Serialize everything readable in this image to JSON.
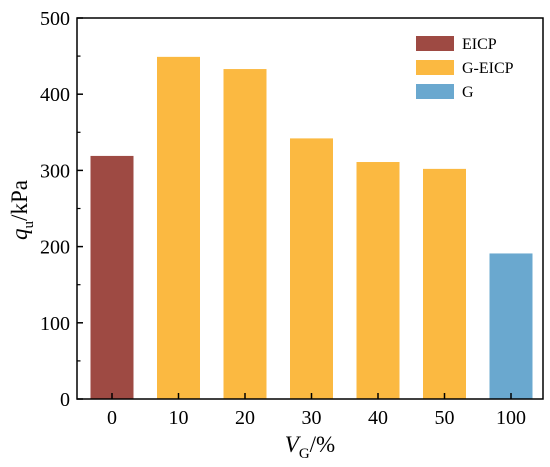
{
  "chart_data": {
    "type": "bar",
    "categories": [
      "0",
      "10",
      "20",
      "30",
      "40",
      "50",
      "100"
    ],
    "values": [
      319,
      449,
      433,
      342,
      311,
      302,
      191
    ],
    "groups": [
      "EICP",
      "G-EICP",
      "G-EICP",
      "G-EICP",
      "G-EICP",
      "G-EICP",
      "G"
    ],
    "legend": [
      {
        "name": "EICP",
        "color": "#9e4a43"
      },
      {
        "name": "G-EICP",
        "color": "#fbb941"
      },
      {
        "name": "G",
        "color": "#6aa8cf"
      }
    ],
    "xlabel": {
      "main": "V",
      "sub": "G",
      "tail": "/%"
    },
    "ylabel": {
      "main": "q",
      "sub": "u",
      "tail": "/kPa"
    },
    "ylim": [
      0,
      500
    ],
    "yticks": [
      0,
      100,
      200,
      300,
      400,
      500
    ],
    "grid": false,
    "legend_position": "top-right"
  }
}
